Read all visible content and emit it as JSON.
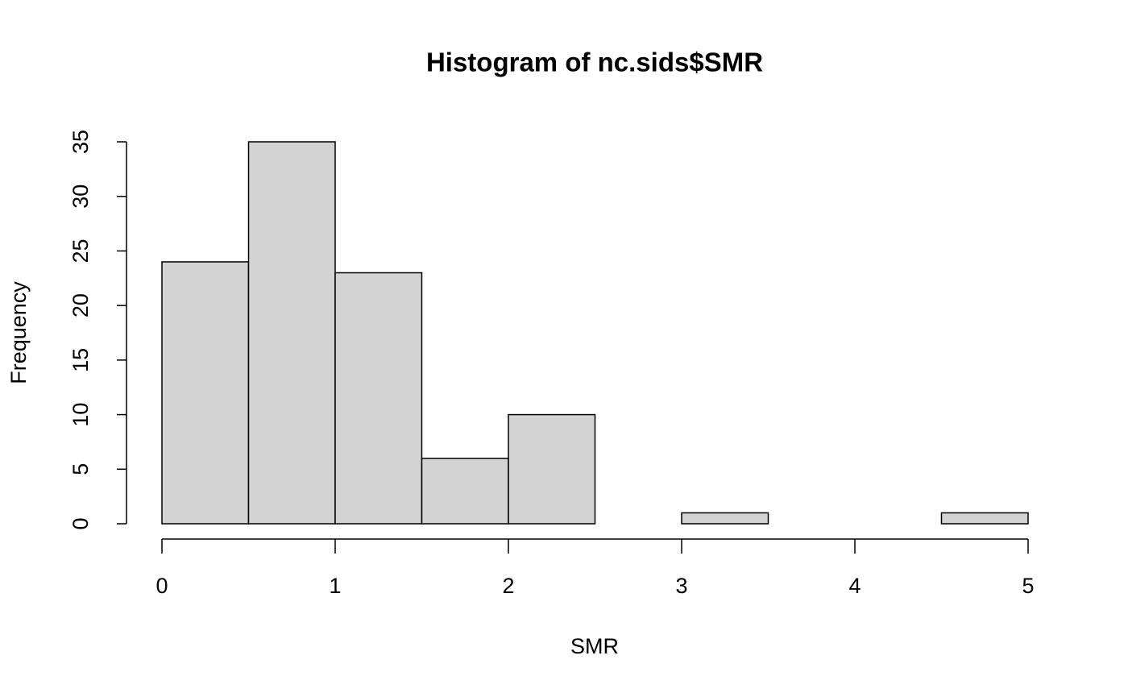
{
  "chart_data": {
    "type": "histogram",
    "title": "Histogram of nc.sids$SMR",
    "x_label": "SMR",
    "y_label": "Frequency",
    "bins": [
      0,
      0.5,
      1,
      1.5,
      2,
      2.5,
      3,
      3.5,
      4,
      4.5,
      5
    ],
    "values": [
      24,
      35,
      23,
      6,
      10,
      0,
      1,
      0,
      0,
      1
    ],
    "color": "#d3d3d3",
    "xlim": [
      0,
      5
    ],
    "xticks": [
      0,
      1,
      2,
      3,
      4,
      5
    ],
    "ylim": [
      0,
      35
    ],
    "yticks": [
      0,
      5,
      10,
      15,
      20,
      25,
      30,
      35
    ]
  }
}
